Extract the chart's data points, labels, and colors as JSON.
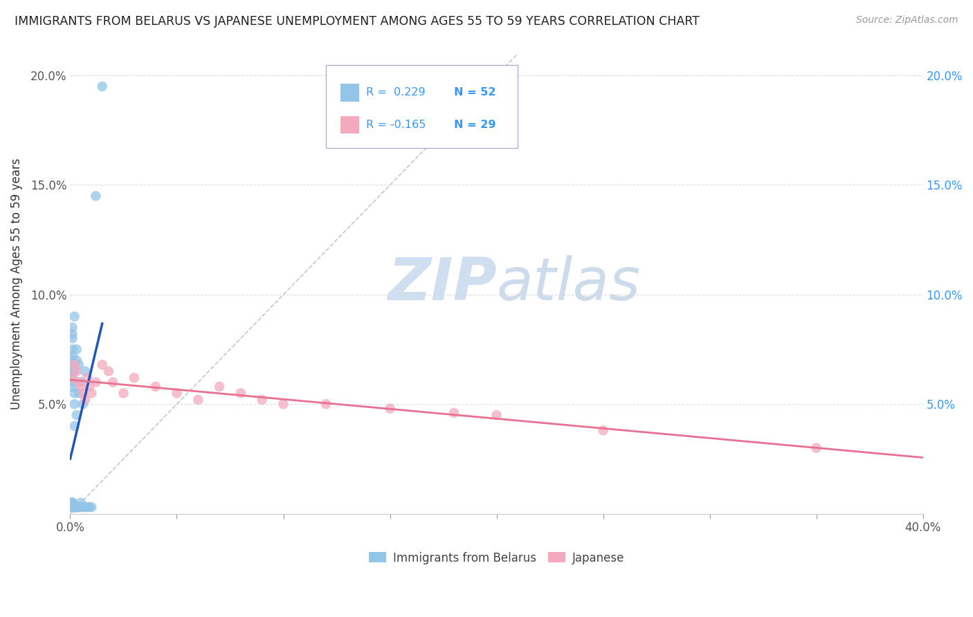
{
  "title": "IMMIGRANTS FROM BELARUS VS JAPANESE UNEMPLOYMENT AMONG AGES 55 TO 59 YEARS CORRELATION CHART",
  "source": "Source: ZipAtlas.com",
  "ylabel": "Unemployment Among Ages 55 to 59 years",
  "xlim": [
    0,
    0.4
  ],
  "ylim": [
    0,
    0.21
  ],
  "xticks": [
    0.0,
    0.05,
    0.1,
    0.15,
    0.2,
    0.25,
    0.3,
    0.35,
    0.4
  ],
  "xticklabels_show": [
    "0.0%",
    "",
    "",
    "",
    "",
    "",
    "",
    "",
    "40.0%"
  ],
  "yticks": [
    0.0,
    0.05,
    0.1,
    0.15,
    0.2
  ],
  "yticklabels_left": [
    "",
    "5.0%",
    "10.0%",
    "15.0%",
    "20.0%"
  ],
  "yticklabels_right": [
    "",
    "5.0%",
    "10.0%",
    "15.0%",
    "20.0%"
  ],
  "blue_color": "#92C5E8",
  "pink_color": "#F4AABE",
  "blue_line_color": "#2255BB",
  "pink_line_color": "#E87090",
  "diag_color": "#AABBD4",
  "watermark_color": "#D0DFF0",
  "legend_box_edge": "#AAAACC",
  "blue_scatter_x": [
    0.001,
    0.001,
    0.001,
    0.001,
    0.001,
    0.001,
    0.001,
    0.001,
    0.001,
    0.001,
    0.001,
    0.001,
    0.001,
    0.001,
    0.001,
    0.001,
    0.001,
    0.001,
    0.001,
    0.001,
    0.002,
    0.002,
    0.002,
    0.002,
    0.002,
    0.002,
    0.002,
    0.002,
    0.002,
    0.002,
    0.003,
    0.003,
    0.003,
    0.003,
    0.003,
    0.003,
    0.004,
    0.004,
    0.004,
    0.004,
    0.005,
    0.005,
    0.005,
    0.006,
    0.006,
    0.007,
    0.007,
    0.008,
    0.009,
    0.01,
    0.012,
    0.015
  ],
  "blue_scatter_y": [
    0.003,
    0.003,
    0.003,
    0.003,
    0.005,
    0.005,
    0.005,
    0.005,
    0.005,
    0.005,
    0.058,
    0.062,
    0.065,
    0.068,
    0.07,
    0.072,
    0.075,
    0.08,
    0.082,
    0.085,
    0.003,
    0.003,
    0.003,
    0.003,
    0.04,
    0.05,
    0.055,
    0.06,
    0.065,
    0.09,
    0.003,
    0.003,
    0.003,
    0.045,
    0.07,
    0.075,
    0.003,
    0.003,
    0.055,
    0.068,
    0.003,
    0.005,
    0.06,
    0.003,
    0.05,
    0.003,
    0.065,
    0.003,
    0.003,
    0.003,
    0.145,
    0.195
  ],
  "pink_scatter_x": [
    0.001,
    0.002,
    0.003,
    0.004,
    0.005,
    0.006,
    0.007,
    0.008,
    0.009,
    0.01,
    0.012,
    0.015,
    0.018,
    0.02,
    0.025,
    0.03,
    0.04,
    0.05,
    0.06,
    0.07,
    0.08,
    0.09,
    0.1,
    0.12,
    0.15,
    0.18,
    0.2,
    0.25,
    0.35
  ],
  "pink_scatter_y": [
    0.062,
    0.068,
    0.065,
    0.06,
    0.058,
    0.055,
    0.052,
    0.062,
    0.058,
    0.055,
    0.06,
    0.068,
    0.065,
    0.06,
    0.055,
    0.062,
    0.058,
    0.055,
    0.052,
    0.058,
    0.055,
    0.052,
    0.05,
    0.05,
    0.048,
    0.046,
    0.045,
    0.038,
    0.03
  ],
  "background_color": "#ffffff",
  "grid_color": "#DDDDDD"
}
